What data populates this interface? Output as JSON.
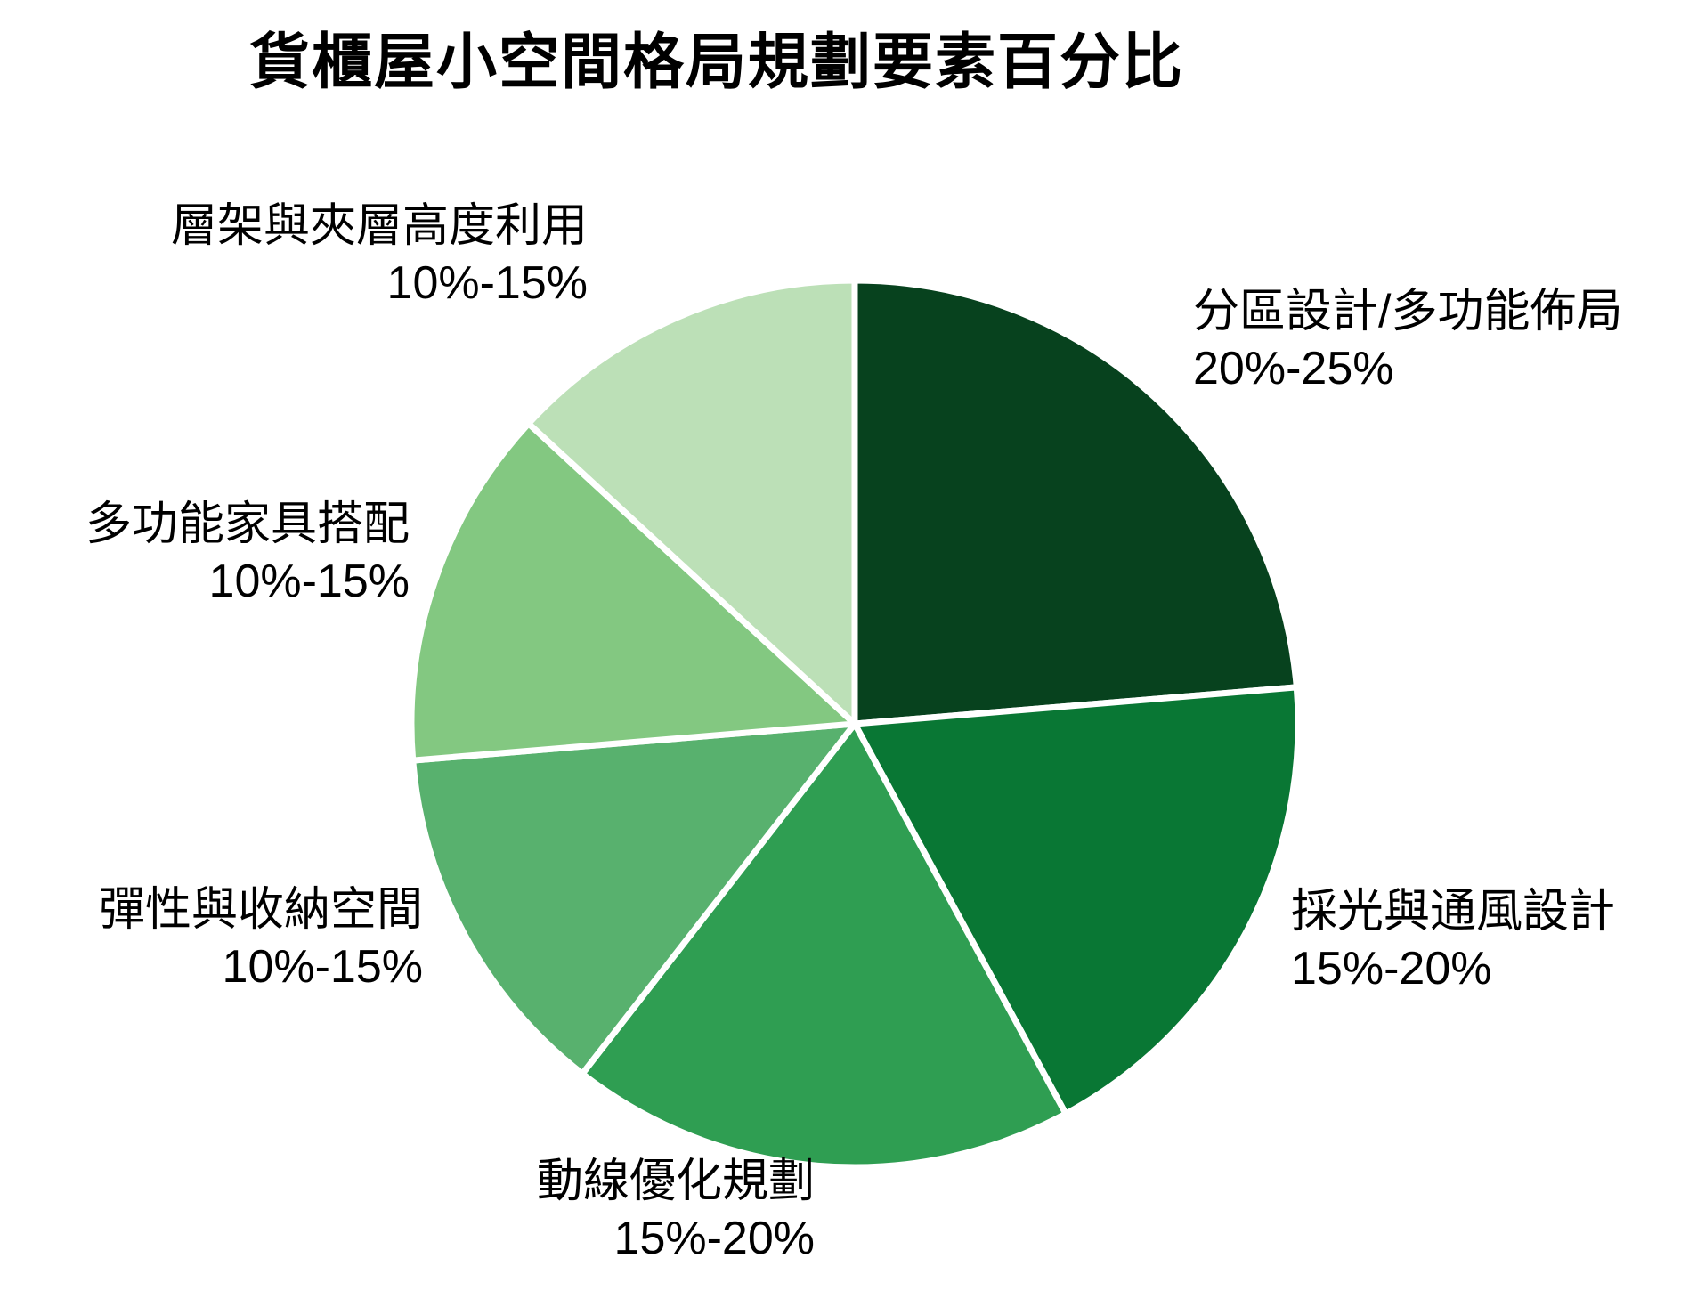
{
  "page": {
    "background_color": "#ffffff",
    "text_color": "#000000"
  },
  "chart_data": {
    "type": "pie",
    "title": "貨櫃屋小空間格局規劃要素百分比",
    "direction": "clockwise",
    "start_angle_deg": 0,
    "legend": false,
    "grid": false,
    "slice_border_color": "#ffffff",
    "slices": [
      {
        "label": "分區設計/多功能佈局",
        "range_label": "20%-25%",
        "value": 22.5,
        "color": "#07421e",
        "label_side": "upper-right"
      },
      {
        "label": "採光與通風設計",
        "range_label": "15%-20%",
        "value": 17.5,
        "color": "#097734",
        "label_side": "lower-right"
      },
      {
        "label": "動線優化規劃",
        "range_label": "15%-20%",
        "value": 17.5,
        "color": "#2f9e52",
        "label_side": "bottom"
      },
      {
        "label": "彈性與收納空間",
        "range_label": "10%-15%",
        "value": 12.5,
        "color": "#58b16e",
        "label_side": "lower-left"
      },
      {
        "label": "多功能家具搭配",
        "range_label": "10%-15%",
        "value": 12.5,
        "color": "#83c881",
        "label_side": "left"
      },
      {
        "label": "層架與夾層高度利用",
        "range_label": "10%-15%",
        "value": 12.5,
        "color": "#bce0b7",
        "label_side": "upper-left"
      }
    ]
  }
}
